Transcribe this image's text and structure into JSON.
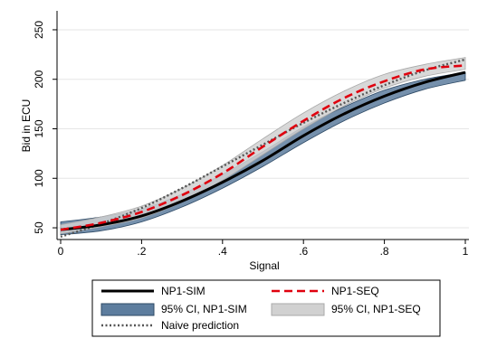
{
  "chart_data": {
    "type": "line",
    "title": "",
    "xlabel": "Signal",
    "ylabel": "Bid in ECU",
    "xlim": [
      0,
      1
    ],
    "ylim": [
      40,
      260
    ],
    "x_ticks": [
      0,
      0.2,
      0.4,
      0.6,
      0.8,
      1
    ],
    "x_tick_labels": [
      "0",
      ".2",
      ".4",
      ".6",
      ".8",
      "1"
    ],
    "y_ticks": [
      50,
      100,
      150,
      200,
      250
    ],
    "y_tick_labels": [
      "50",
      "100",
      "150",
      "200",
      "250"
    ],
    "grid": "horizontal",
    "legend_position": "bottom",
    "x": [
      0,
      0.1,
      0.2,
      0.3,
      0.4,
      0.5,
      0.6,
      0.7,
      0.8,
      0.9,
      1
    ],
    "series": [
      {
        "name": "95% CI, NP1-SIM",
        "kind": "band",
        "color": "#5d7d9e",
        "upper": [
          56,
          61,
          69,
          84,
          104,
          127,
          152,
          172,
          189,
          200,
          207
        ],
        "lower": [
          43,
          47,
          56,
          71,
          90,
          112,
          136,
          158,
          176,
          190,
          199
        ]
      },
      {
        "name": "95% CI, NP1-SEQ",
        "kind": "band",
        "color": "#d1d1d1",
        "upper": [
          53,
          61,
          72,
          90,
          113,
          140,
          166,
          188,
          205,
          215,
          222
        ],
        "lower": [
          44,
          51,
          60,
          76,
          98,
          124,
          150,
          173,
          191,
          203,
          210
        ]
      },
      {
        "name": "NP1-SIM",
        "kind": "line",
        "color": "#000000",
        "values": [
          48,
          53,
          62,
          77,
          96,
          118,
          143,
          165,
          183,
          197,
          207
        ]
      },
      {
        "name": "NP1-SEQ",
        "kind": "line",
        "color": "#e0000e",
        "values": [
          48,
          55,
          66,
          83,
          105,
          132,
          158,
          181,
          198,
          210,
          214
        ]
      },
      {
        "name": "Naive prediction",
        "kind": "line",
        "color": "#555555",
        "values": [
          41,
          54,
          70,
          90,
          112,
          134,
          156,
          176,
          194,
          209,
          220
        ]
      }
    ],
    "legend": [
      {
        "name": "NP1-SIM",
        "swatch": "line",
        "color": "#000000"
      },
      {
        "name": "NP1-SEQ",
        "swatch": "dashed",
        "color": "#e0000e"
      },
      {
        "name": "95% CI, NP1-SIM",
        "swatch": "box",
        "color": "#5d7d9e"
      },
      {
        "name": "95% CI, NP1-SEQ",
        "swatch": "box",
        "color": "#d1d1d1"
      },
      {
        "name": "Naive prediction",
        "swatch": "dotted",
        "color": "#555555"
      }
    ]
  }
}
